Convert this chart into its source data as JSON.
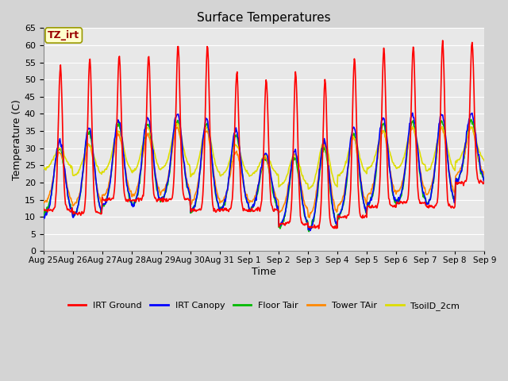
{
  "title": "Surface Temperatures",
  "xlabel": "Time",
  "ylabel": "Temperature (C)",
  "ylim": [
    0,
    65
  ],
  "yticks": [
    0,
    5,
    10,
    15,
    20,
    25,
    30,
    35,
    40,
    45,
    50,
    55,
    60,
    65
  ],
  "x_labels": [
    "Aug 25",
    "Aug 26",
    "Aug 27",
    "Aug 28",
    "Aug 29",
    "Aug 30",
    "Aug 31",
    "Sep 1",
    "Sep 2",
    "Sep 3",
    "Sep 4",
    "Sep 5",
    "Sep 6",
    "Sep 7",
    "Sep 8",
    "Sep 9"
  ],
  "series": {
    "IRT Ground": {
      "color": "#ff0000",
      "linewidth": 1.2
    },
    "IRT Canopy": {
      "color": "#0000ff",
      "linewidth": 1.2
    },
    "Floor Tair": {
      "color": "#00bb00",
      "linewidth": 1.2
    },
    "Tower TAir": {
      "color": "#ff8800",
      "linewidth": 1.2
    },
    "TsoilD_2cm": {
      "color": "#dddd00",
      "linewidth": 1.2
    }
  },
  "annotation_text": "TZ_irt",
  "annotation_color": "#990000",
  "annotation_bg": "#ffffcc",
  "annotation_border": "#999900",
  "fig_bg": "#d4d4d4",
  "plot_bg": "#e8e8e8",
  "grid_color": "#ffffff"
}
